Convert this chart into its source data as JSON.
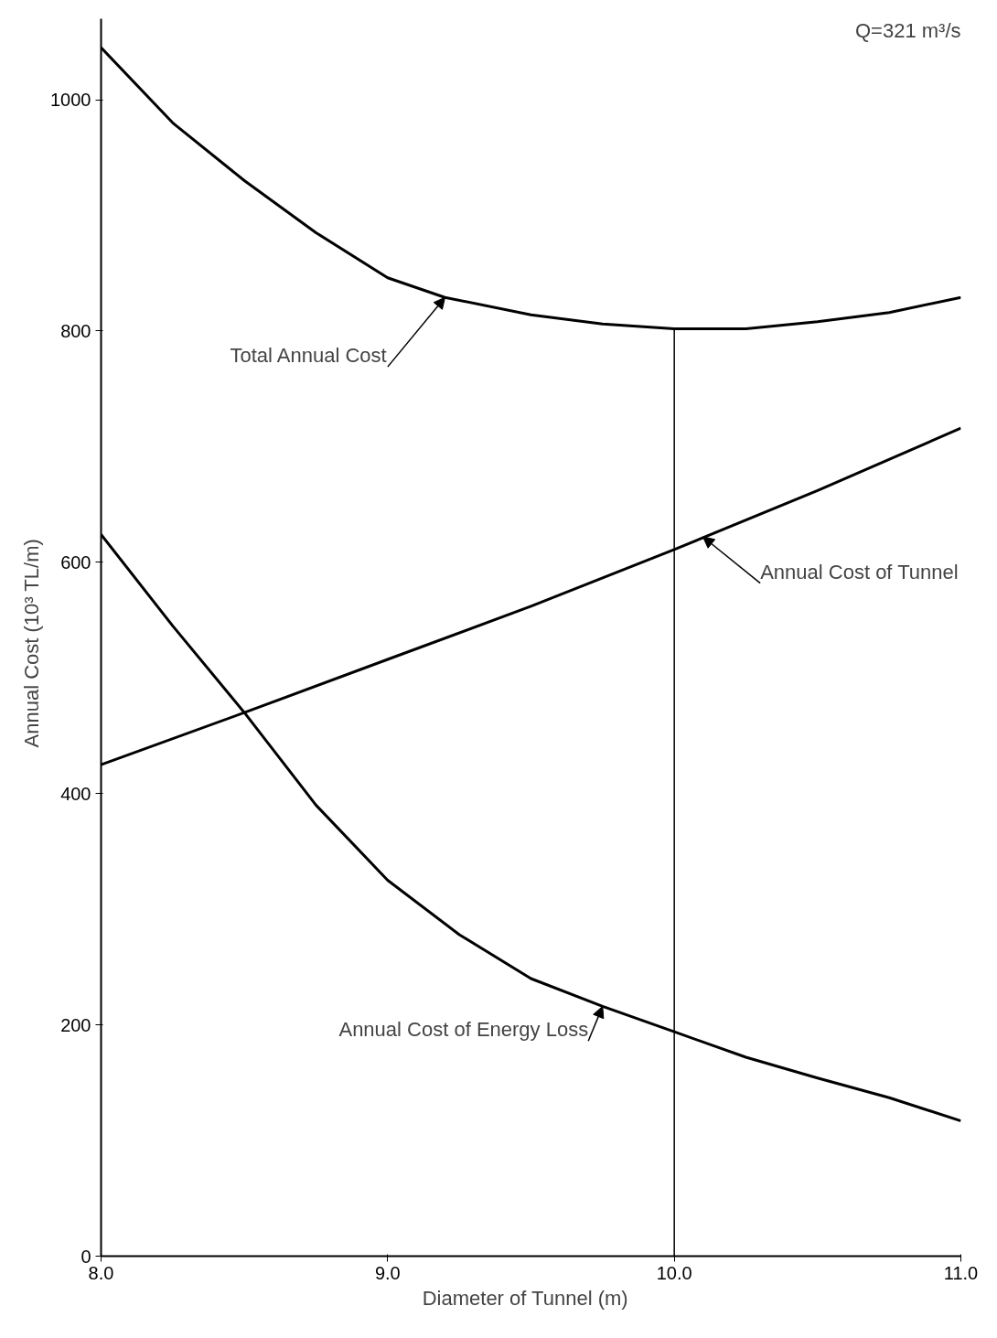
{
  "chart_data": {
    "type": "line",
    "xlabel": "Diameter of Tunnel   (m)",
    "ylabel": "Annual Cost   (10³ TL/m)",
    "xlim": [
      8.0,
      11.0
    ],
    "ylim": [
      0,
      1070
    ],
    "xticks": [
      {
        "value": 8.0,
        "label": "8.0"
      },
      {
        "value": 9.0,
        "label": "9.0"
      },
      {
        "value": 10.0,
        "label": "10.0"
      },
      {
        "value": 11.0,
        "label": "11.0"
      }
    ],
    "yticks": [
      0,
      200,
      400,
      600,
      800,
      1000
    ],
    "grid": false,
    "marker": "none",
    "line_style": "solid",
    "series": [
      {
        "color": "#000000",
        "x": [
          8.0,
          8.25,
          8.5,
          8.75,
          9.0,
          9.2,
          9.5,
          9.75,
          10.0,
          10.25,
          10.5,
          10.75,
          11.0
        ],
        "values": [
          1045,
          980,
          930,
          885,
          846,
          829,
          814,
          806,
          802,
          802,
          808,
          816,
          829
        ]
      },
      {
        "color": "#000000",
        "x": [
          8.0,
          8.5,
          9.0,
          9.5,
          10.0,
          10.5,
          11.0
        ],
        "values": [
          425,
          470,
          516,
          562,
          611,
          662,
          716
        ]
      },
      {
        "color": "#000000",
        "x": [
          8.0,
          8.25,
          8.5,
          8.75,
          9.0,
          9.25,
          9.5,
          9.75,
          10.0,
          10.25,
          10.5,
          10.75,
          11.0
        ],
        "values": [
          624,
          545,
          470,
          390,
          325,
          278,
          240,
          216,
          194,
          172,
          154,
          137,
          117
        ]
      }
    ],
    "ref_lines": [
      {
        "axis": "x",
        "value": 10.0,
        "label": null
      }
    ],
    "annotations": [
      {
        "text": "Total Annual Cost",
        "x": 9.2,
        "y": 829
      },
      {
        "text": "Annual Cost of Tunnel",
        "x": 10.1,
        "y": 622
      },
      {
        "text": "Annual Cost of Energy Loss",
        "x": 9.75,
        "y": 216
      },
      "Q=321 m³/s"
    ]
  }
}
